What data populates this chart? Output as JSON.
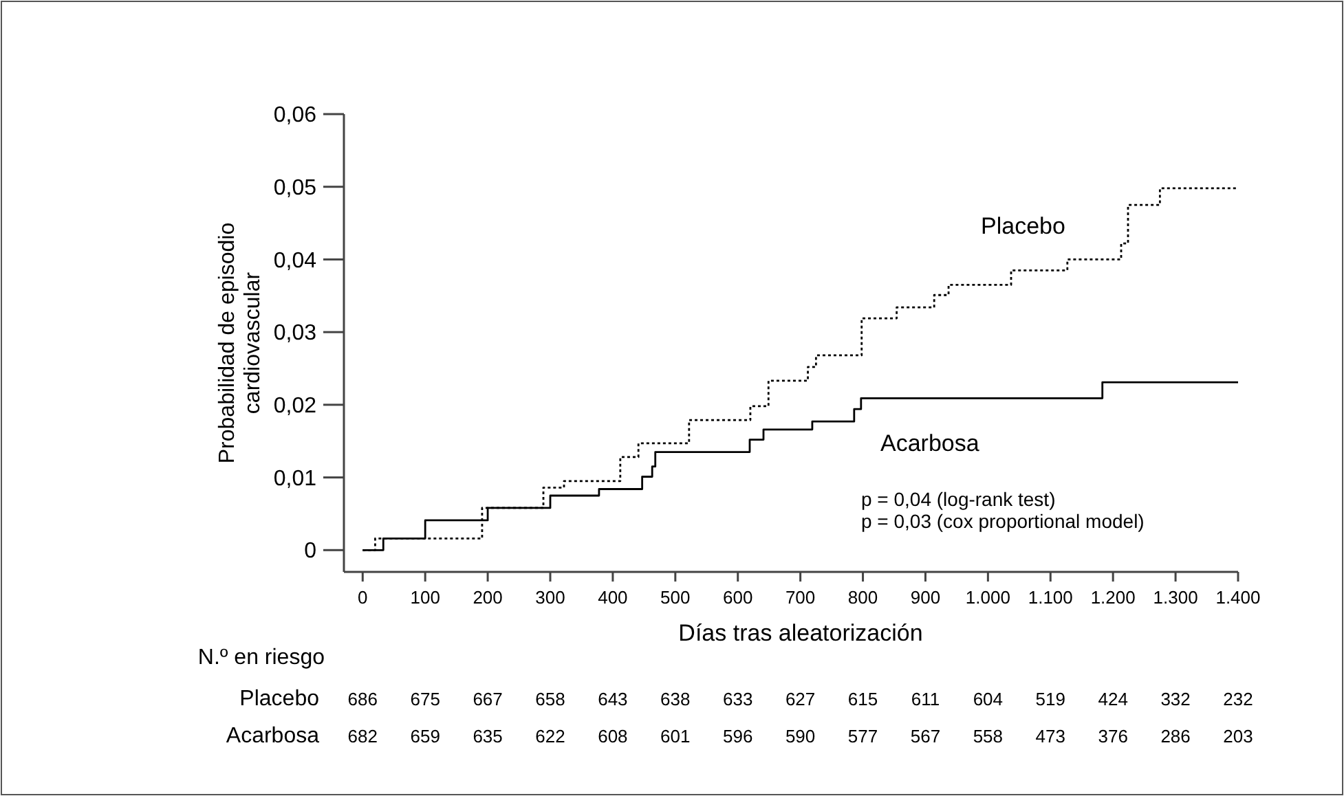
{
  "chart_data": {
    "type": "step",
    "xlabel": "Días tras aleatorización",
    "ylabel": "Probabilidad de episodio cardiovascular",
    "xlim": [
      -30,
      1400
    ],
    "ylim": [
      -0.003,
      0.06
    ],
    "xticks": [
      0,
      100,
      200,
      300,
      400,
      500,
      600,
      700,
      800,
      900,
      {
        "value": 1000,
        "label": "1.000"
      },
      {
        "value": 1100,
        "label": "1.100"
      },
      {
        "value": 1200,
        "label": "1.200"
      },
      {
        "value": 1300,
        "label": "1.300"
      },
      {
        "value": 1400,
        "label": "1.400"
      }
    ],
    "yticks": [
      {
        "value": 0,
        "label": "0"
      },
      {
        "value": 0.01,
        "label": "0,01"
      },
      {
        "value": 0.02,
        "label": "0,02"
      },
      {
        "value": 0.03,
        "label": "0,03"
      },
      {
        "value": 0.04,
        "label": "0,04"
      },
      {
        "value": 0.05,
        "label": "0,05"
      },
      {
        "value": 0.06,
        "label": "0,06"
      }
    ],
    "series": [
      {
        "name": "Placebo",
        "color": "#000000",
        "line_style": "dotted",
        "x": [
          0,
          20,
          191,
          289,
          322,
          412,
          441,
          522,
          620,
          649,
          712,
          725,
          798,
          854,
          914,
          937,
          1037,
          1127,
          1213,
          1224,
          1275,
          1400
        ],
        "values": [
          0,
          0.0016,
          0.0058,
          0.0086,
          0.0095,
          0.0128,
          0.0147,
          0.0179,
          0.0198,
          0.0233,
          0.0252,
          0.0268,
          0.0319,
          0.0334,
          0.0351,
          0.0365,
          0.0385,
          0.04,
          0.0422,
          0.0475,
          0.0498,
          0.0498
        ]
      },
      {
        "name": "Acarbosa",
        "color": "#000000",
        "line_style": "solid",
        "x": [
          0,
          33,
          100,
          200,
          300,
          378,
          447,
          463,
          468,
          619,
          641,
          719,
          786,
          797,
          1183,
          1400
        ],
        "values": [
          0,
          0.0016,
          0.0041,
          0.0058,
          0.0075,
          0.0084,
          0.0101,
          0.0115,
          0.0135,
          0.0152,
          0.0166,
          0.0177,
          0.0194,
          0.0209,
          0.0231,
          0.0231
        ]
      }
    ],
    "annotations": [
      "p = 0,04 (log-rank test)",
      "p = 0,03 (cox proportional model)",
      "N.º en riesgo",
      "686 675 667 658 643 638 633 627 615 611 604 519 424 332 232",
      "682 659 635 622 608 601 596 590 577 567 558 473 376 286 203"
    ]
  }
}
